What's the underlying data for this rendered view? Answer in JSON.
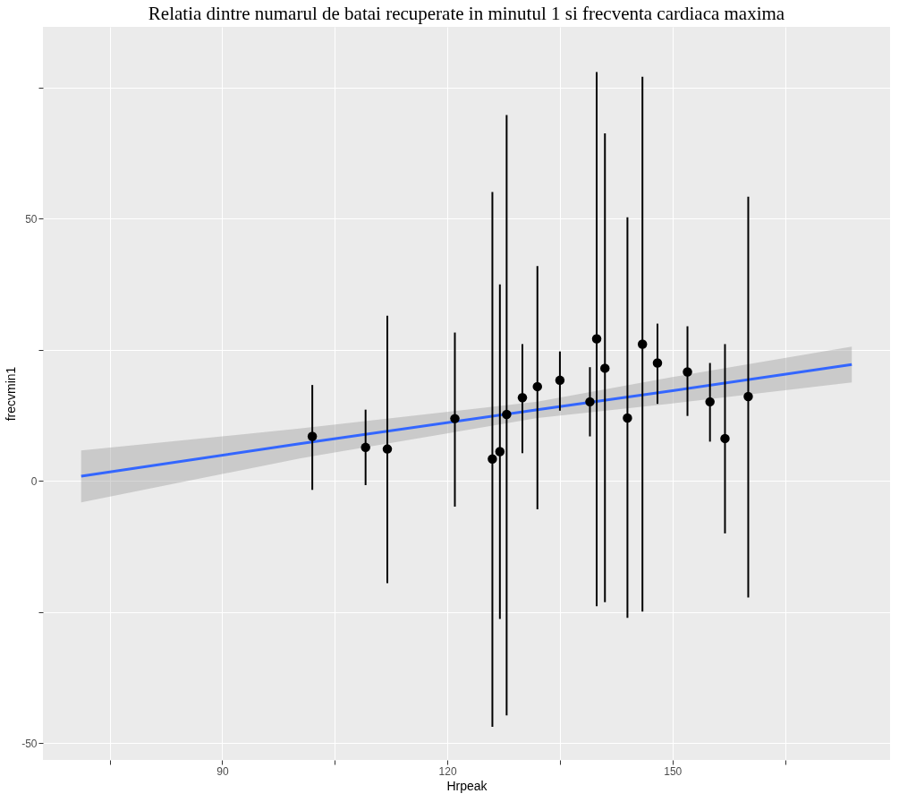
{
  "chart_data": {
    "type": "scatter",
    "title": "Relatia dintre numarul de batai recuperate in minutul 1 si frecventa cardiaca maxima",
    "xlabel": "Hrpeak",
    "ylabel": "frecvmin1",
    "xlim": [
      66.1,
      179.0
    ],
    "ylim": [
      -53.2,
      86.6
    ],
    "xticks": [
      {
        "value": 75,
        "label": null
      },
      90,
      {
        "value": 105,
        "label": null
      },
      120,
      {
        "value": 135,
        "label": null
      },
      150,
      {
        "value": 165,
        "label": null
      }
    ],
    "yticks": [
      -50,
      {
        "value": -25,
        "label": null
      },
      0,
      {
        "value": 25,
        "label": null
      },
      50,
      {
        "value": 75,
        "label": null
      }
    ],
    "grid": true,
    "series": [
      {
        "type": "line",
        "color": "#3366ff",
        "line_style": "solid",
        "x": [
          71.2,
          100.3,
          132,
          150,
          173.9
        ],
        "values": [
          0.9,
          7.1,
          13.6,
          17.2,
          22.2
        ],
        "lower": [
          -4.1,
          4.3,
          12.0,
          14.8,
          18.8
        ],
        "upper": [
          5.8,
          10.0,
          15.1,
          19.8,
          25.6
        ]
      },
      {
        "color": "#000000",
        "marker": "circle",
        "x": [
          102.0,
          109.1,
          112.0,
          121.0,
          126.0,
          127.0,
          127.9,
          130.0,
          132.0,
          135.0,
          139.0,
          139.9,
          141.0,
          144.0,
          146.0,
          148.0,
          152.0,
          155.0,
          157.0,
          160.1
        ],
        "values": [
          8.5,
          6.4,
          6.1,
          11.9,
          4.2,
          5.6,
          12.7,
          15.9,
          18.0,
          19.2,
          15.1,
          27.1,
          21.5,
          12.0,
          26.1,
          22.5,
          20.8,
          15.1,
          8.1,
          16.1
        ],
        "errors": [
          [
            -1.7,
            18.3
          ],
          [
            -0.8,
            13.6
          ],
          [
            -19.5,
            31.5
          ],
          [
            -4.9,
            28.3
          ],
          [
            -46.9,
            55.1
          ],
          [
            -26.3,
            37.5
          ],
          [
            -44.7,
            69.8
          ],
          [
            5.3,
            26.1
          ],
          [
            -5.4,
            41.0
          ],
          [
            13.4,
            24.7
          ],
          [
            8.5,
            21.7
          ],
          [
            -23.9,
            78.0
          ],
          [
            -23.1,
            66.3
          ],
          [
            -26.1,
            50.3
          ],
          [
            -24.9,
            77.1
          ],
          [
            14.7,
            30.0
          ],
          [
            12.4,
            29.5
          ],
          [
            7.5,
            22.5
          ],
          [
            -10.0,
            26.1
          ],
          [
            -22.2,
            54.2
          ]
        ]
      }
    ]
  }
}
